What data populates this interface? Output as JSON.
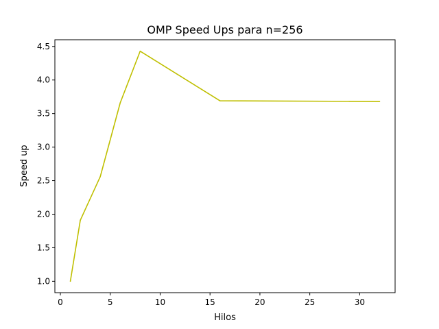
{
  "chart_data": {
    "type": "line",
    "title": "OMP Speed Ups para n=256",
    "xlabel": "Hilos",
    "ylabel": "Speed up",
    "xlim": [
      -0.55,
      33.55
    ],
    "ylim": [
      0.83,
      4.6
    ],
    "xticks": [
      0,
      5,
      10,
      15,
      20,
      25,
      30
    ],
    "xtick_labels": [
      "0",
      "5",
      "10",
      "15",
      "20",
      "25",
      "30"
    ],
    "yticks": [
      1.0,
      1.5,
      2.0,
      2.5,
      3.0,
      3.5,
      4.0,
      4.5
    ],
    "ytick_labels": [
      "1.0",
      "1.5",
      "2.0",
      "2.5",
      "3.0",
      "3.5",
      "4.0",
      "4.5"
    ],
    "grid": false,
    "legend": "none",
    "series": [
      {
        "color": "#bfbf00",
        "x": [
          1,
          2,
          4,
          6,
          8,
          16,
          32
        ],
        "y": [
          1.0,
          1.91,
          2.56,
          3.66,
          4.43,
          3.69,
          3.68
        ]
      }
    ]
  }
}
